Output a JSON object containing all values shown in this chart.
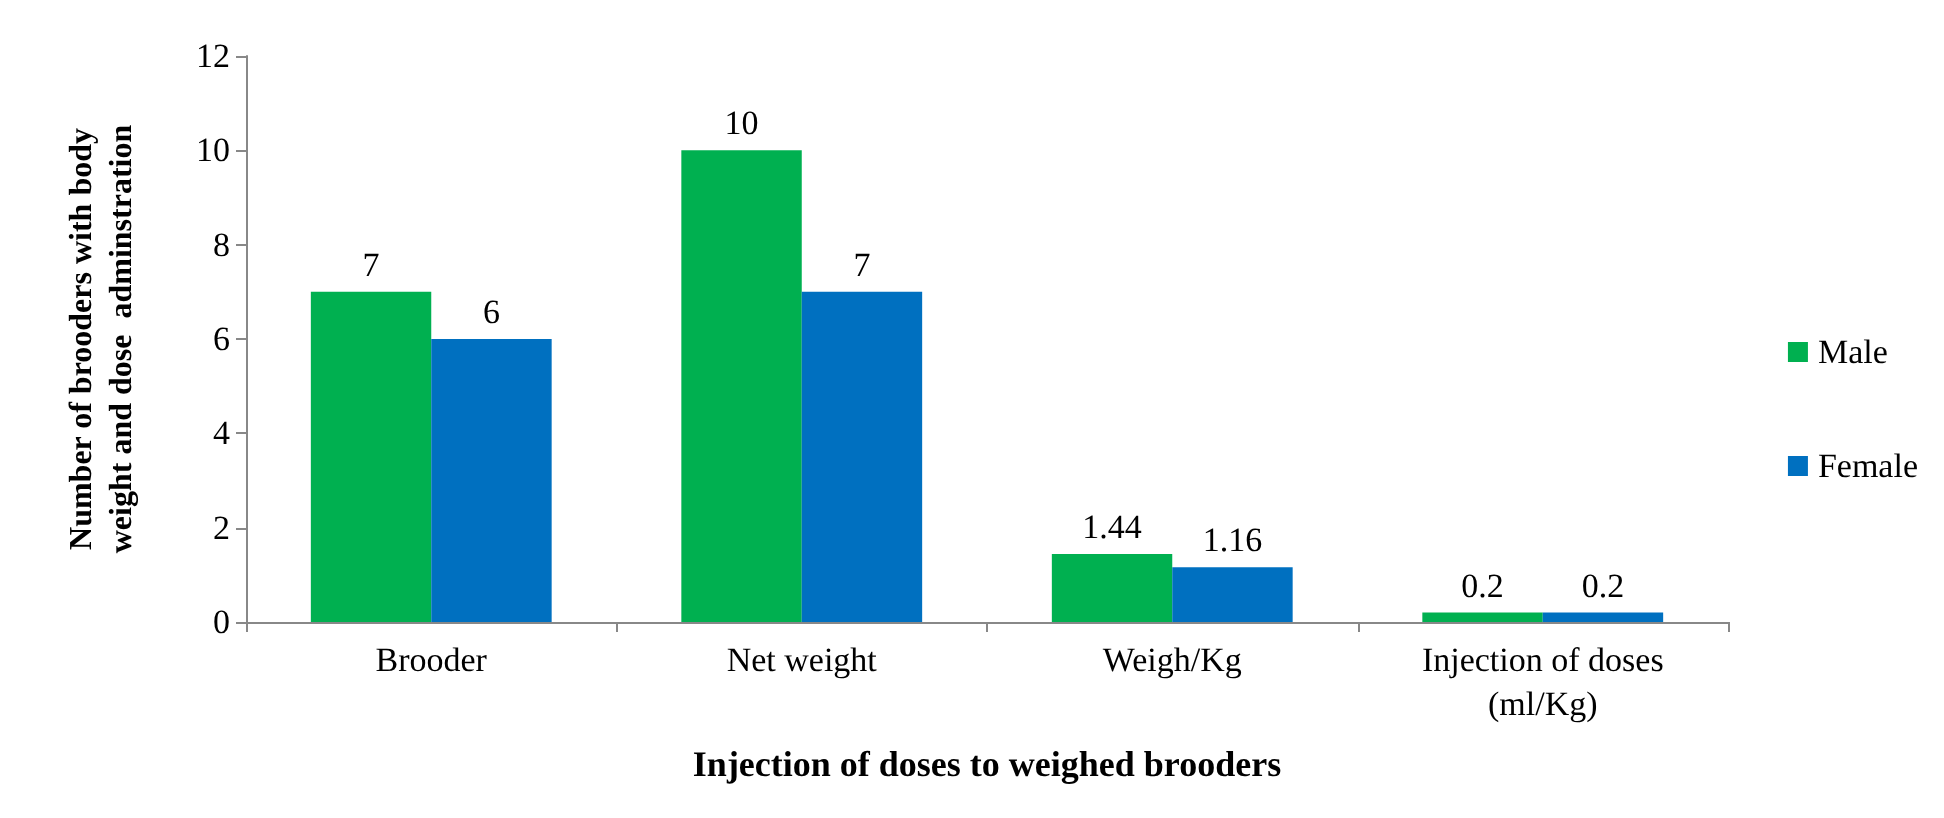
{
  "chart_data": {
    "type": "bar",
    "xlabel": "Injection of doses to weighed brooders",
    "ylabel": "Number of brooders with body weight and dose  adminstration",
    "categories": [
      "Brooder",
      "Net weight",
      "Weigh/Kg",
      "Injection of doses (ml/Kg)"
    ],
    "series": [
      {
        "name": "Male",
        "color": "#00b050",
        "values": [
          7,
          10,
          1.44,
          0.2
        ]
      },
      {
        "name": "Female",
        "color": "#0070c0",
        "values": [
          6,
          7,
          1.16,
          0.2
        ]
      }
    ],
    "ylim": [
      0,
      12
    ],
    "yticks": [
      0,
      2,
      4,
      6,
      8,
      10,
      12
    ],
    "data_labels": true,
    "legend": "right",
    "grid": false
  }
}
